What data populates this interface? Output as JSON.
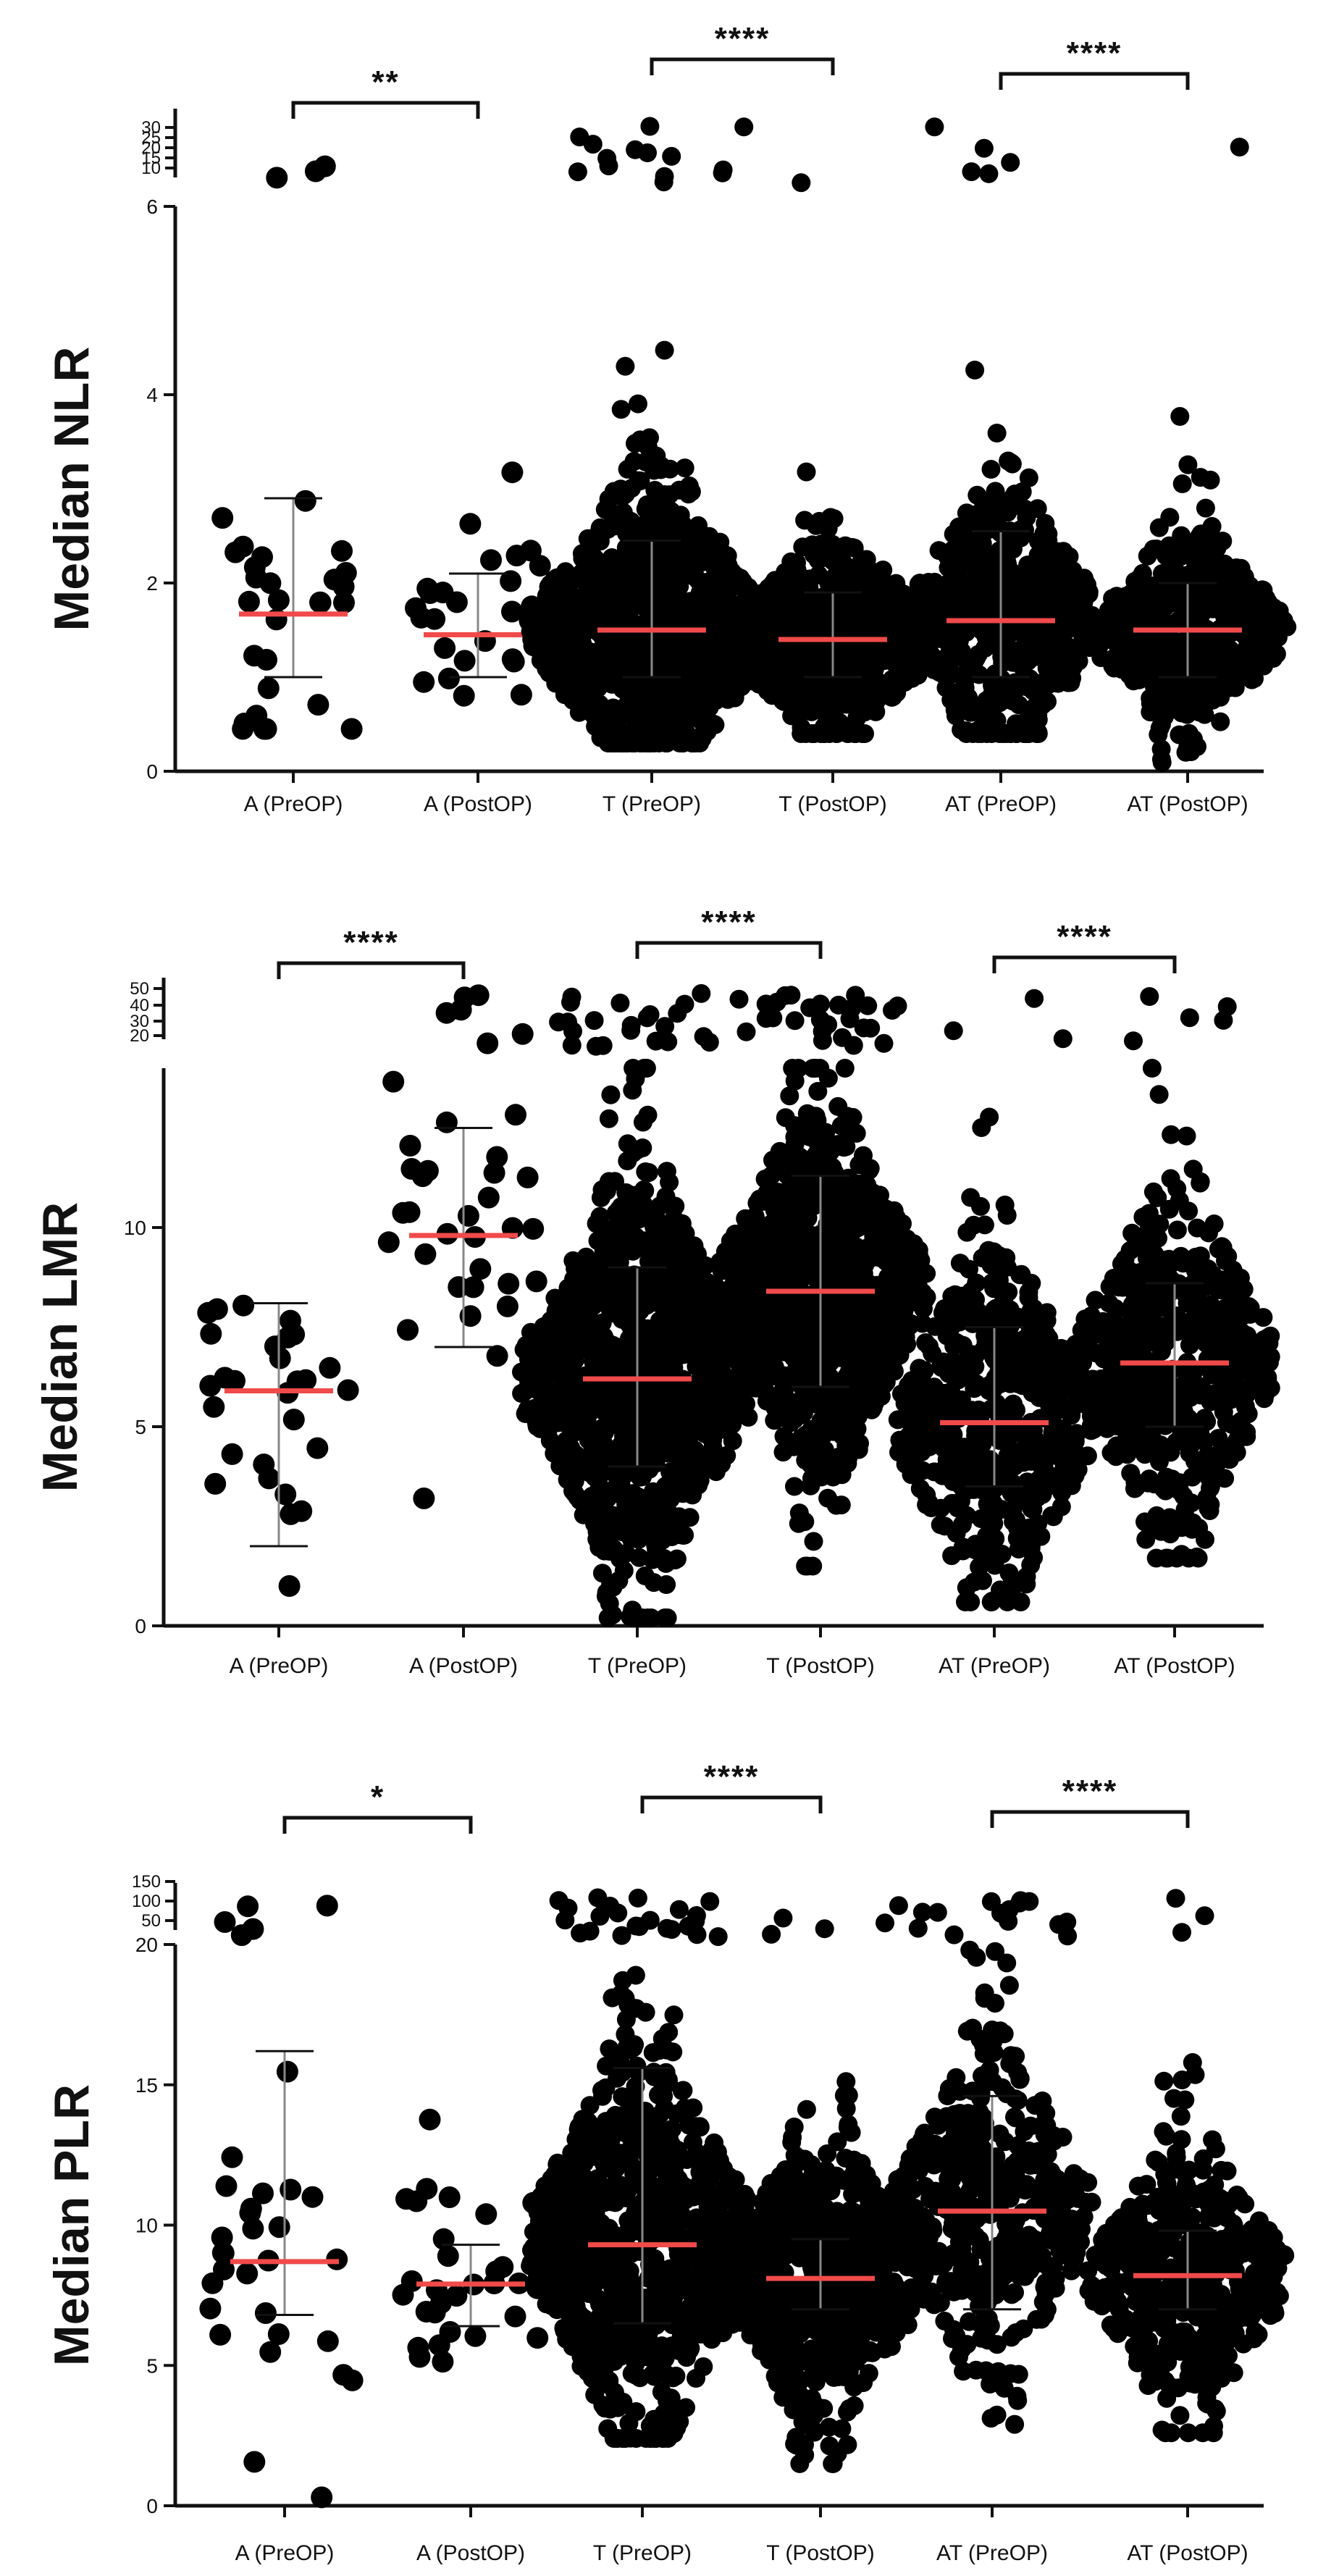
{
  "chart_data": [
    {
      "type": "scatter",
      "subtype": "dot-plot with median and interquartile range",
      "ylabel": "Median NLR",
      "categories": [
        "A (PreOP)",
        "A (PostOP)",
        "T (PreOP)",
        "T (PostOP)",
        "AT (PreOP)",
        "AT (PostOP)"
      ],
      "ylim": [
        0,
        6
      ],
      "yticks": [
        0,
        2,
        4,
        6
      ],
      "broken_axis_upper": {
        "ticks": [
          10,
          15,
          20,
          25,
          30
        ]
      },
      "groups": [
        {
          "category": "A (PreOP)",
          "median": 1.67,
          "q3": 2.9,
          "q1": 1.0,
          "n": 28
        },
        {
          "category": "A (PostOP)",
          "median": 1.45,
          "q3": 2.1,
          "q1": 1.0,
          "n": 30
        },
        {
          "category": "T (PreOP)",
          "median": 1.5,
          "q3": 2.45,
          "q1": 1.0,
          "n": 900
        },
        {
          "category": "T (PostOP)",
          "median": 1.4,
          "q3": 1.9,
          "q1": 1.0,
          "n": 700
        },
        {
          "category": "AT (PreOP)",
          "median": 1.6,
          "q3": 2.55,
          "q1": 1.0,
          "n": 500
        },
        {
          "category": "AT (PostOP)",
          "median": 1.5,
          "q3": 2.0,
          "q1": 1.0,
          "n": 450
        }
      ],
      "significance": [
        {
          "between": [
            "A (PreOP)",
            "A (PostOP)"
          ],
          "label": "**"
        },
        {
          "between": [
            "T (PreOP)",
            "T (PostOP)"
          ],
          "label": "****"
        },
        {
          "between": [
            "AT (PreOP)",
            "AT (PostOP)"
          ],
          "label": "****"
        }
      ]
    },
    {
      "type": "scatter",
      "subtype": "dot-plot with median and interquartile range",
      "ylabel": "Median LMR",
      "categories": [
        "A (PreOP)",
        "A (PostOP)",
        "T (PreOP)",
        "T (PostOP)",
        "AT (PreOP)",
        "AT (PostOP)"
      ],
      "ylim": [
        0,
        14
      ],
      "yticks": [
        0,
        5,
        10
      ],
      "broken_axis_upper": {
        "ticks": [
          20,
          30,
          40,
          50
        ]
      },
      "groups": [
        {
          "category": "A (PreOP)",
          "median": 5.9,
          "q3": 8.1,
          "q1": 2.0,
          "n": 28
        },
        {
          "category": "A (PostOP)",
          "median": 9.8,
          "q3": 12.5,
          "q1": 7.0,
          "n": 30
        },
        {
          "category": "T (PreOP)",
          "median": 6.2,
          "q3": 9.0,
          "q1": 4.0,
          "n": 1000
        },
        {
          "category": "T (PostOP)",
          "median": 8.4,
          "q3": 11.3,
          "q1": 6.0,
          "n": 900
        },
        {
          "category": "AT (PreOP)",
          "median": 5.1,
          "q3": 7.5,
          "q1": 3.5,
          "n": 500
        },
        {
          "category": "AT (PostOP)",
          "median": 6.6,
          "q3": 8.6,
          "q1": 5.0,
          "n": 500
        }
      ],
      "significance": [
        {
          "between": [
            "A (PreOP)",
            "A (PostOP)"
          ],
          "label": "****"
        },
        {
          "between": [
            "T (PreOP)",
            "T (PostOP)"
          ],
          "label": "****"
        },
        {
          "between": [
            "AT (PreOP)",
            "AT (PostOP)"
          ],
          "label": "****"
        }
      ]
    },
    {
      "type": "scatter",
      "subtype": "dot-plot with median and interquartile range",
      "ylabel": "Median PLR",
      "categories": [
        "A (PreOP)",
        "A (PostOP)",
        "T (PreOP)",
        "T (PostOP)",
        "AT (PreOP)",
        "AT (PostOP)"
      ],
      "ylim": [
        0,
        20
      ],
      "yticks": [
        0,
        5,
        10,
        15,
        20
      ],
      "broken_axis_upper": {
        "ticks": [
          50,
          100,
          150
        ]
      },
      "groups": [
        {
          "category": "A (PreOP)",
          "median": 8.7,
          "q3": 16.2,
          "q1": 6.8,
          "n": 28
        },
        {
          "category": "A (PostOP)",
          "median": 7.9,
          "q3": 9.3,
          "q1": 6.4,
          "n": 30
        },
        {
          "category": "T (PreOP)",
          "median": 9.3,
          "q3": 15.6,
          "q1": 6.5,
          "n": 800
        },
        {
          "category": "T (PostOP)",
          "median": 8.1,
          "q3": 9.5,
          "q1": 7.0,
          "n": 700
        },
        {
          "category": "AT (PreOP)",
          "median": 10.5,
          "q3": 14.6,
          "q1": 7.0,
          "n": 450
        },
        {
          "category": "AT (PostOP)",
          "median": 8.2,
          "q3": 9.8,
          "q1": 7.0,
          "n": 450
        }
      ],
      "significance": [
        {
          "between": [
            "A (PreOP)",
            "A (PostOP)"
          ],
          "label": "*"
        },
        {
          "between": [
            "T (PreOP)",
            "T (PostOP)"
          ],
          "label": "****"
        },
        {
          "between": [
            "AT (PreOP)",
            "AT (PostOP)"
          ],
          "label": "****"
        }
      ]
    }
  ],
  "colors": {
    "dot": "#000000",
    "median": "#f04a4a",
    "axis": "#111111"
  }
}
